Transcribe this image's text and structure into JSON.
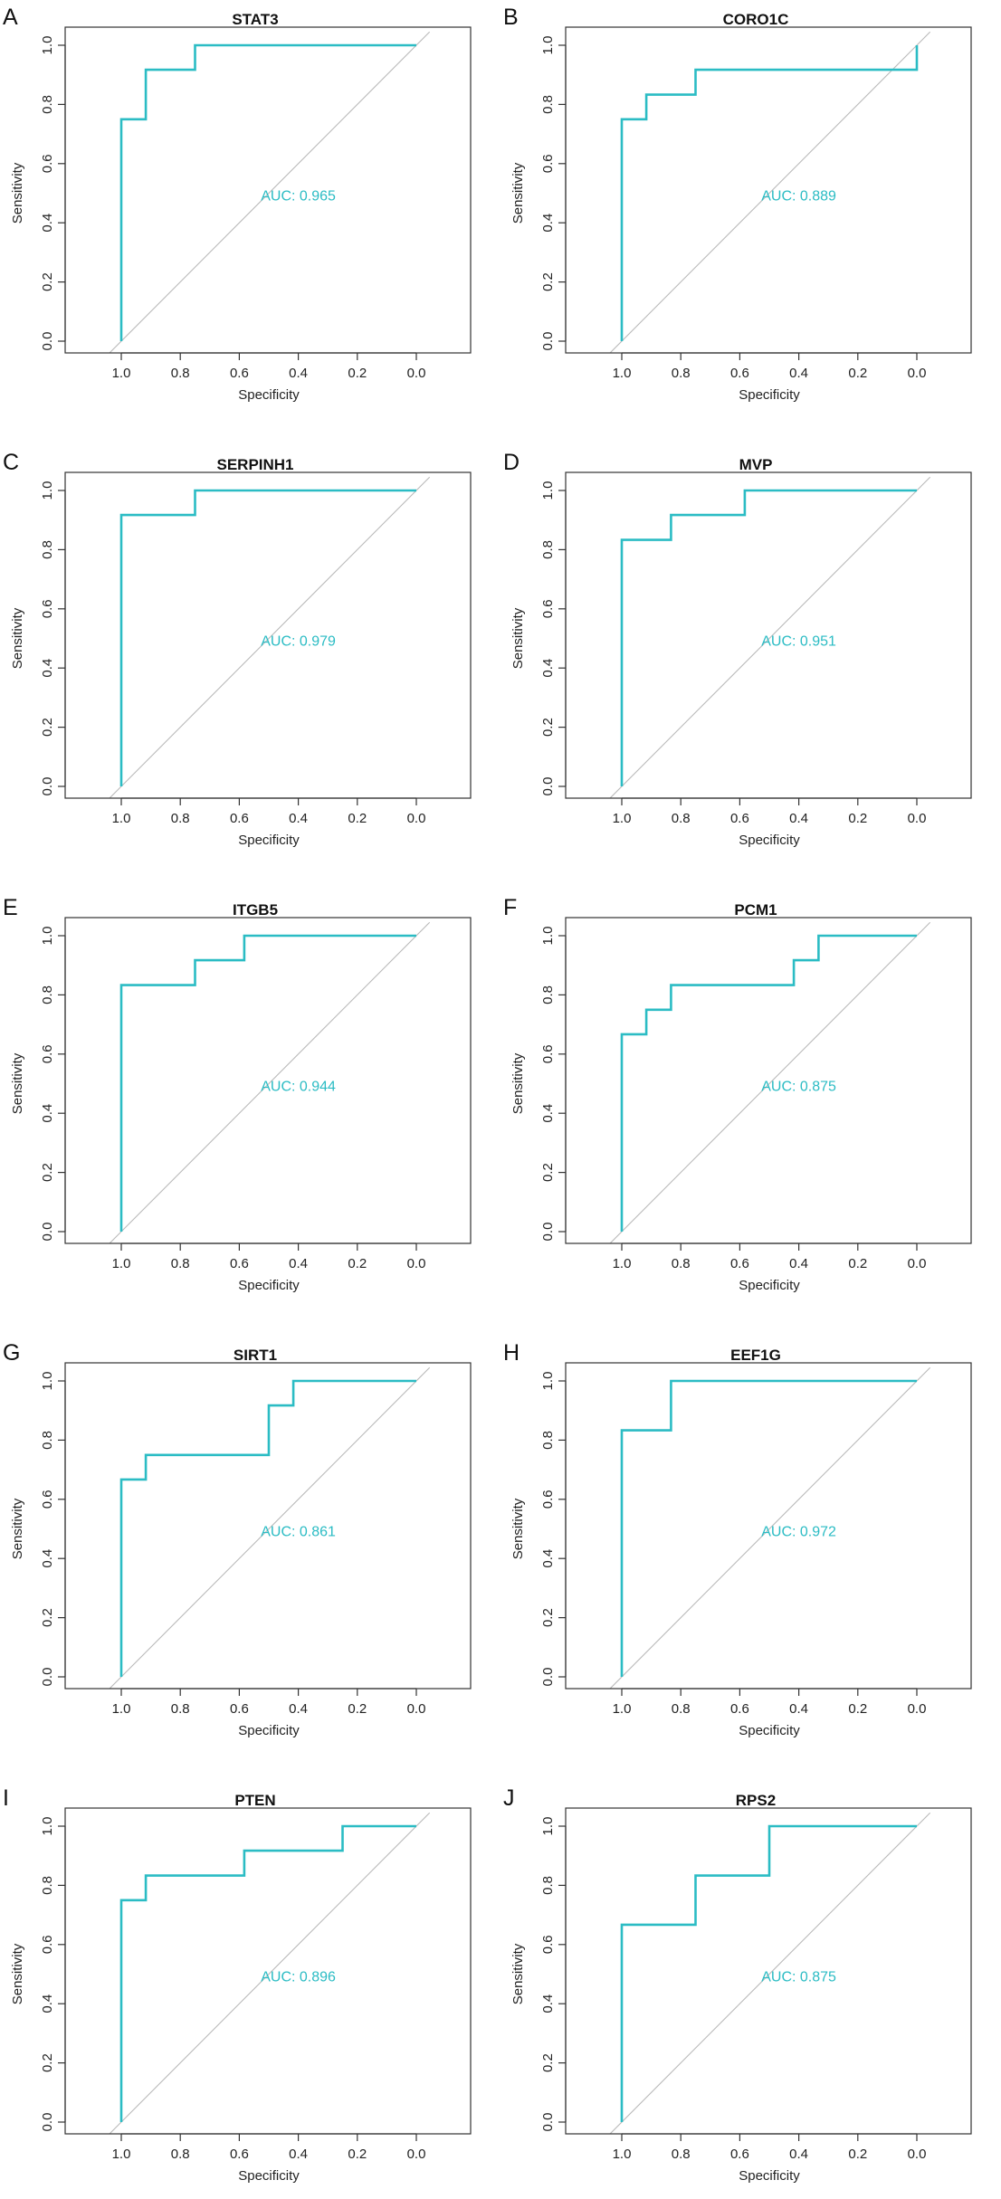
{
  "figure": {
    "xlabel": "Specificity",
    "ylabel": "Sensitivity",
    "x_ticks": [
      "1.0",
      "0.8",
      "0.6",
      "0.4",
      "0.2",
      "0.0"
    ],
    "y_ticks": [
      "0.0",
      "0.2",
      "0.4",
      "0.6",
      "0.8",
      "1.0"
    ],
    "curve_color": "#2bbcc4",
    "diagonal_color": "#b9b9b9",
    "auc_label_prefix": "AUC: "
  },
  "chart_data": [
    {
      "type": "line",
      "panel": "A",
      "title": "STAT3",
      "auc": "0.965",
      "xlabel": "Specificity",
      "ylabel": "Sensitivity",
      "xlim": [
        1.0,
        0.0
      ],
      "ylim": [
        0.0,
        1.0
      ],
      "x": [
        1.0,
        1.0,
        0.917,
        0.917,
        0.75,
        0.75,
        0.0
      ],
      "y": [
        0.0,
        0.75,
        0.75,
        0.917,
        0.917,
        1.0,
        1.0
      ]
    },
    {
      "type": "line",
      "panel": "B",
      "title": "CORO1C",
      "auc": "0.889",
      "xlabel": "Specificity",
      "ylabel": "Sensitivity",
      "xlim": [
        1.0,
        0.0
      ],
      "ylim": [
        0.0,
        1.0
      ],
      "x": [
        1.0,
        1.0,
        0.917,
        0.917,
        0.75,
        0.75,
        0.0,
        0.0
      ],
      "y": [
        0.0,
        0.75,
        0.75,
        0.833,
        0.833,
        0.917,
        0.917,
        1.0
      ]
    },
    {
      "type": "line",
      "panel": "C",
      "title": "SERPINH1",
      "auc": "0.979",
      "xlabel": "Specificity",
      "ylabel": "Sensitivity",
      "xlim": [
        1.0,
        0.0
      ],
      "ylim": [
        0.0,
        1.0
      ],
      "x": [
        1.0,
        1.0,
        0.75,
        0.75,
        0.0
      ],
      "y": [
        0.0,
        0.917,
        0.917,
        1.0,
        1.0
      ]
    },
    {
      "type": "line",
      "panel": "D",
      "title": "MVP",
      "auc": "0.951",
      "xlabel": "Specificity",
      "ylabel": "Sensitivity",
      "xlim": [
        1.0,
        0.0
      ],
      "ylim": [
        0.0,
        1.0
      ],
      "x": [
        1.0,
        1.0,
        0.833,
        0.833,
        0.583,
        0.583,
        0.0
      ],
      "y": [
        0.0,
        0.833,
        0.833,
        0.917,
        0.917,
        1.0,
        1.0
      ]
    },
    {
      "type": "line",
      "panel": "E",
      "title": "ITGB5",
      "auc": "0.944",
      "xlabel": "Specificity",
      "ylabel": "Sensitivity",
      "xlim": [
        1.0,
        0.0
      ],
      "ylim": [
        0.0,
        1.0
      ],
      "x": [
        1.0,
        1.0,
        0.75,
        0.75,
        0.583,
        0.583,
        0.0
      ],
      "y": [
        0.0,
        0.833,
        0.833,
        0.917,
        0.917,
        1.0,
        1.0
      ]
    },
    {
      "type": "line",
      "panel": "F",
      "title": "PCM1",
      "auc": "0.875",
      "xlabel": "Specificity",
      "ylabel": "Sensitivity",
      "xlim": [
        1.0,
        0.0
      ],
      "ylim": [
        0.0,
        1.0
      ],
      "x": [
        1.0,
        1.0,
        0.917,
        0.917,
        0.833,
        0.833,
        0.417,
        0.417,
        0.333,
        0.333,
        0.0
      ],
      "y": [
        0.0,
        0.667,
        0.667,
        0.75,
        0.75,
        0.833,
        0.833,
        0.917,
        0.917,
        1.0,
        1.0
      ]
    },
    {
      "type": "line",
      "panel": "G",
      "title": "SIRT1",
      "auc": "0.861",
      "xlabel": "Specificity",
      "ylabel": "Sensitivity",
      "xlim": [
        1.0,
        0.0
      ],
      "ylim": [
        0.0,
        1.0
      ],
      "x": [
        1.0,
        1.0,
        0.917,
        0.917,
        0.5,
        0.5,
        0.417,
        0.417,
        0.0
      ],
      "y": [
        0.0,
        0.667,
        0.667,
        0.75,
        0.75,
        0.917,
        0.917,
        1.0,
        1.0
      ]
    },
    {
      "type": "line",
      "panel": "H",
      "title": "EEF1G",
      "auc": "0.972",
      "xlabel": "Specificity",
      "ylabel": "Sensitivity",
      "xlim": [
        1.0,
        0.0
      ],
      "ylim": [
        0.0,
        1.0
      ],
      "x": [
        1.0,
        1.0,
        0.833,
        0.833,
        0.0
      ],
      "y": [
        0.0,
        0.833,
        0.833,
        1.0,
        1.0
      ]
    },
    {
      "type": "line",
      "panel": "I",
      "title": "PTEN",
      "auc": "0.896",
      "xlabel": "Specificity",
      "ylabel": "Sensitivity",
      "xlim": [
        1.0,
        0.0
      ],
      "ylim": [
        0.0,
        1.0
      ],
      "x": [
        1.0,
        1.0,
        0.917,
        0.917,
        0.583,
        0.583,
        0.25,
        0.25,
        0.0
      ],
      "y": [
        0.0,
        0.75,
        0.75,
        0.833,
        0.833,
        0.917,
        0.917,
        1.0,
        1.0
      ]
    },
    {
      "type": "line",
      "panel": "J",
      "title": "RPS2",
      "auc": "0.875",
      "xlabel": "Specificity",
      "ylabel": "Sensitivity",
      "xlim": [
        1.0,
        0.0
      ],
      "ylim": [
        0.0,
        1.0
      ],
      "x": [
        1.0,
        1.0,
        0.75,
        0.75,
        0.5,
        0.5,
        0.0
      ],
      "y": [
        0.0,
        0.667,
        0.667,
        0.833,
        0.833,
        1.0,
        1.0
      ]
    }
  ]
}
